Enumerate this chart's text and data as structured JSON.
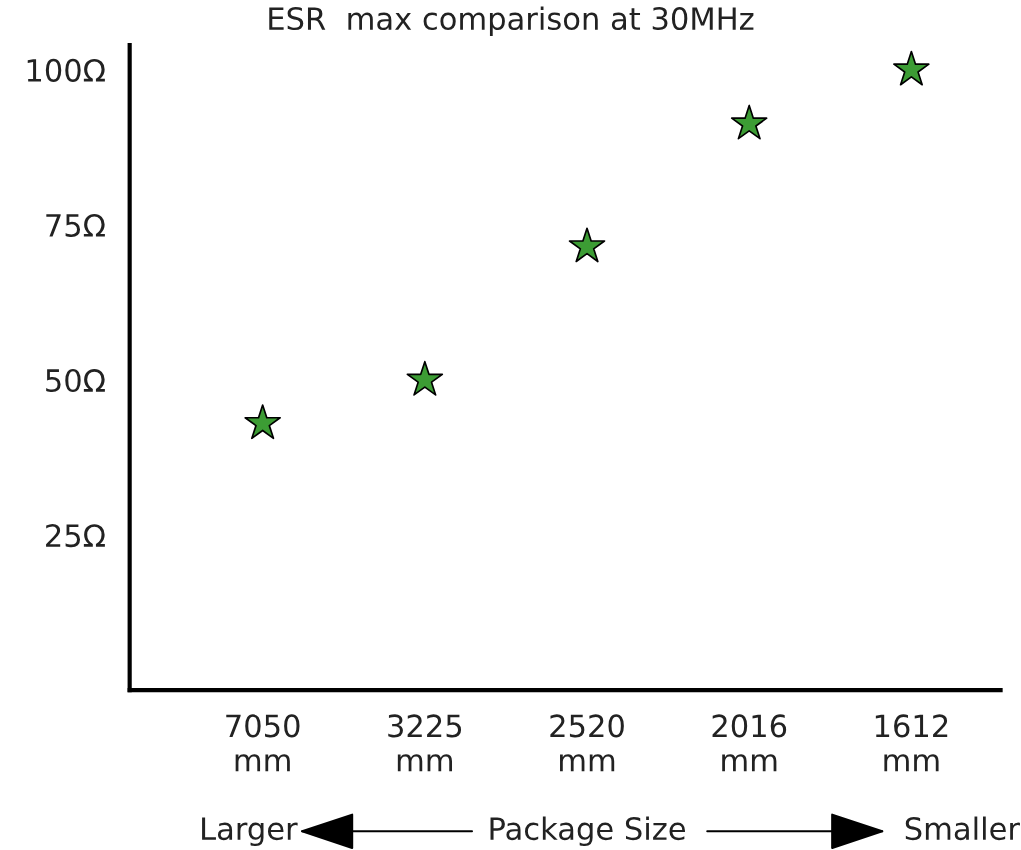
{
  "chart_data": {
    "type": "scatter",
    "title": "ESR  max comparison at 30MHz",
    "xlabel": "Package Size",
    "annotations": [
      "Larger",
      "Smaller"
    ],
    "categories": [
      "7050\nmm",
      "3225\nmm",
      "2520\nmm",
      "2016\nmm",
      "1612\nmm"
    ],
    "series": [
      {
        "color": "#3c9c34",
        "values": [
          43,
          50,
          71.5,
          91.3,
          100
        ]
      }
    ],
    "marker": "star",
    "grid": false,
    "legend": false,
    "ylim": [
      0,
      104
    ],
    "yticks": [
      {
        "value": 25,
        "label": "25Ω"
      },
      {
        "value": 50,
        "label": "50Ω"
      },
      {
        "value": 75,
        "label": "75Ω"
      },
      {
        "value": 100,
        "label": "100Ω"
      }
    ]
  }
}
